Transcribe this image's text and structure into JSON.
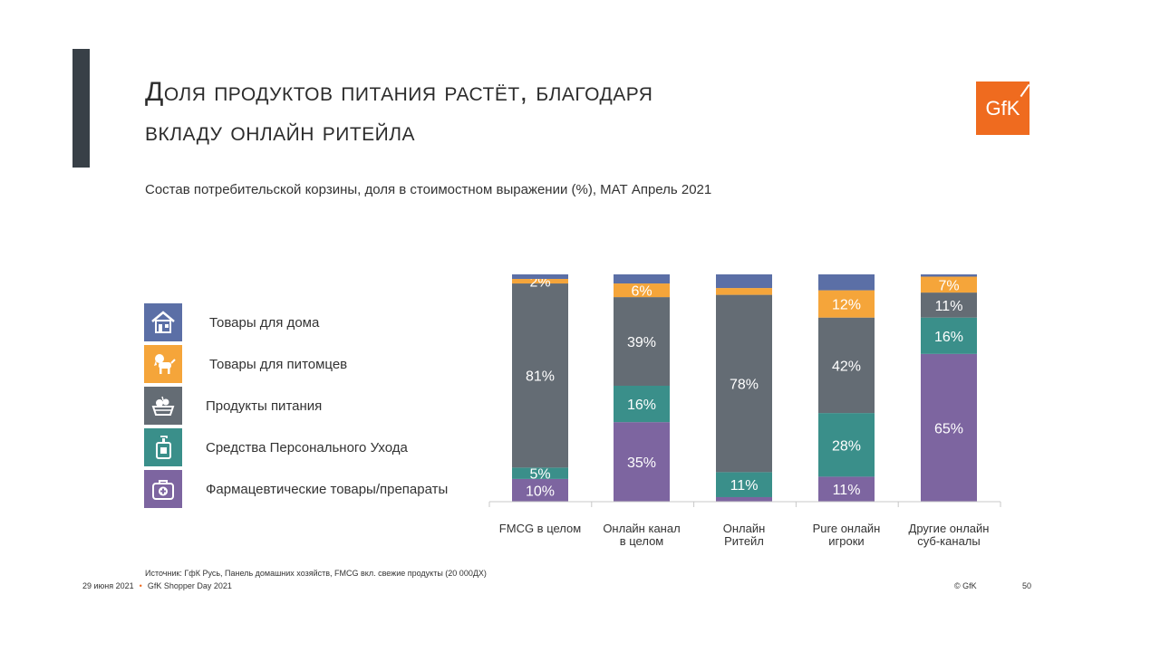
{
  "title_line1": "Доля продуктов питания растёт, благодаря",
  "title_line2": "вкладу онлайн ритейла",
  "logo_text": "GfK",
  "subtitle": "Состав потребительской корзины,  доля в стоимостном выражении (%), МАТ Апрель 2021",
  "legend": [
    {
      "label": "Товары для дома",
      "color": "#5b6fa6",
      "icon": "house-icon"
    },
    {
      "label": "Товары для питомцев",
      "color": "#f5a53a",
      "icon": "dog-icon"
    },
    {
      "label": "Продукты питания",
      "color": "#646c74",
      "icon": "food-basket-icon"
    },
    {
      "label": "Средства Персонального Ухода",
      "color": "#3a8f8a",
      "icon": "dispenser-bottle-icon"
    },
    {
      "label": "Фармацевтические товары/препараты",
      "color": "#7d65a0",
      "icon": "first-aid-kit-icon"
    }
  ],
  "chart_data": {
    "type": "bar",
    "stacked": true,
    "normalized_percent": true,
    "categories": [
      "FMCG в целом",
      "Онлайн канал в целом",
      "Онлайн Ритейл",
      "Pure онлайн игроки",
      "Другие онлайн суб-каналы"
    ],
    "category_lines": [
      [
        "FMCG в целом"
      ],
      [
        "Онлайн канал",
        "в целом"
      ],
      [
        "Онлайн",
        "Ритейл"
      ],
      [
        "Pure онлайн",
        "игроки"
      ],
      [
        "Другие онлайн",
        "суб-каналы"
      ]
    ],
    "series": [
      {
        "name": "Фармацевтические товары/препараты",
        "color": "#7d65a0",
        "values": [
          10,
          35,
          2,
          11,
          65
        ],
        "labels": [
          "10%",
          "35%",
          "",
          "11%",
          "65%"
        ]
      },
      {
        "name": "Средства Персонального Ухода",
        "color": "#3a8f8a",
        "values": [
          5,
          16,
          11,
          28,
          16
        ],
        "labels": [
          "5%",
          "16%",
          "11%",
          "28%",
          "16%"
        ]
      },
      {
        "name": "Продукты питания",
        "color": "#646c74",
        "values": [
          81,
          39,
          78,
          42,
          11
        ],
        "labels": [
          "81%",
          "39%",
          "78%",
          "42%",
          "11%"
        ]
      },
      {
        "name": "Товары для питомцев",
        "color": "#f5a53a",
        "values": [
          2,
          6,
          3,
          12,
          7
        ],
        "labels": [
          "2%",
          "6%",
          "",
          "12%",
          "7%"
        ]
      },
      {
        "name": "Товары для дома",
        "color": "#5b6fa6",
        "values": [
          2,
          4,
          6,
          7,
          1
        ],
        "labels": [
          "",
          "",
          "",
          "",
          ""
        ]
      }
    ],
    "ylim": [
      0,
      100
    ]
  },
  "source": "Источник: ГфК Русь, Панель домашних хозяйств, FMCG вкл. свежие продукты (20 000ДХ)",
  "footer": {
    "date": "29 июня 2021",
    "event": "GfK Shopper Day 2021",
    "copyright": "© GfK",
    "page": "50"
  }
}
